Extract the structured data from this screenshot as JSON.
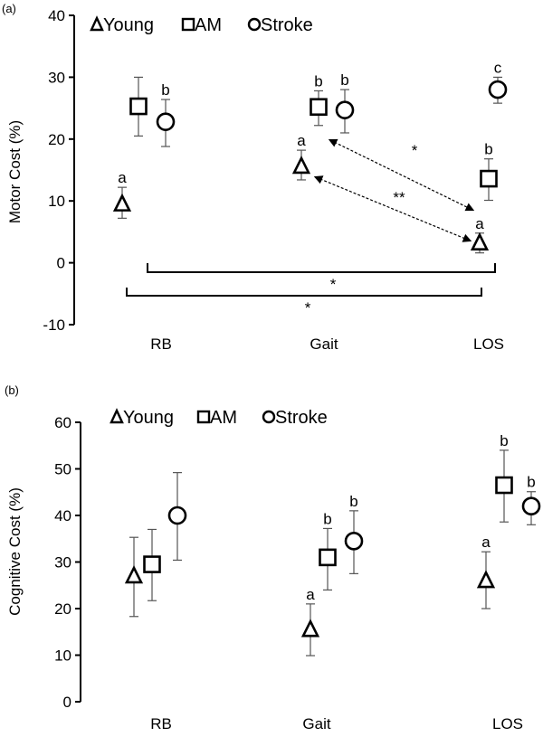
{
  "chart_data": [
    {
      "type": "scatter",
      "panel_label": "(a)",
      "title": "",
      "xlabel": "",
      "ylabel": "Motor Cost (%)",
      "ylim": [
        -10,
        40
      ],
      "yticks": [
        "-10",
        "0",
        "10",
        "20",
        "30",
        "40"
      ],
      "ytick_values": [
        -10,
        0,
        10,
        20,
        30,
        40
      ],
      "categories": [
        "RB",
        "Gait",
        "LOS"
      ],
      "legend": {
        "placement": "top-left",
        "entries": [
          "Young",
          "AM",
          "Stroke"
        ]
      },
      "series": [
        {
          "name": "Young",
          "marker": "triangle",
          "values": [
            9.5,
            15.6,
            3.2
          ],
          "err_low": [
            7.2,
            13.4,
            1.6
          ],
          "err_high": [
            12.2,
            18.2,
            4.8
          ],
          "letters": [
            "a",
            "a",
            "a"
          ]
        },
        {
          "name": "AM",
          "marker": "square",
          "values": [
            25.3,
            25.2,
            13.6
          ],
          "err_low": [
            20.5,
            22.2,
            10.1
          ],
          "err_high": [
            30.0,
            27.8,
            16.8
          ],
          "letters": [
            "",
            "b",
            "b"
          ]
        },
        {
          "name": "Stroke",
          "marker": "circle",
          "values": [
            22.8,
            24.7,
            28.0
          ],
          "err_low": [
            18.8,
            21.0,
            25.8
          ],
          "err_high": [
            26.4,
            28.0,
            30.0
          ],
          "letters": [
            "b",
            "b",
            "c"
          ]
        }
      ],
      "annotations": {
        "arrow_am_gait_los": "*",
        "arrow_young_gait_los": "**",
        "bracket_upper": "*",
        "bracket_lower": "*"
      }
    },
    {
      "type": "scatter",
      "panel_label": "(b)",
      "title": "",
      "xlabel": "",
      "ylabel": "Cognitive Cost (%)",
      "ylim": [
        0,
        60
      ],
      "yticks": [
        "0",
        "10",
        "20",
        "30",
        "40",
        "50",
        "60"
      ],
      "ytick_values": [
        0,
        10,
        20,
        30,
        40,
        50,
        60
      ],
      "categories": [
        "RB",
        "Gait",
        "LOS"
      ],
      "legend": {
        "placement": "top-left",
        "entries": [
          "Young",
          "AM",
          "Stroke"
        ]
      },
      "series": [
        {
          "name": "Young",
          "marker": "triangle",
          "values": [
            27.0,
            15.5,
            26.0
          ],
          "err_low": [
            18.3,
            9.9,
            20.0
          ],
          "err_high": [
            35.3,
            21.0,
            32.2
          ],
          "letters": [
            "",
            "a",
            "a"
          ]
        },
        {
          "name": "AM",
          "marker": "square",
          "values": [
            29.5,
            31.0,
            46.5
          ],
          "err_low": [
            21.7,
            24.0,
            38.6
          ],
          "err_high": [
            37.0,
            37.2,
            54.0
          ],
          "letters": [
            "",
            "b",
            "b"
          ]
        },
        {
          "name": "Stroke",
          "marker": "circle",
          "values": [
            40.0,
            34.5,
            42.0
          ],
          "err_low": [
            30.4,
            27.5,
            38.0
          ],
          "err_high": [
            49.2,
            41.0,
            45.1
          ],
          "letters": [
            "",
            "b",
            "b"
          ]
        }
      ]
    }
  ]
}
